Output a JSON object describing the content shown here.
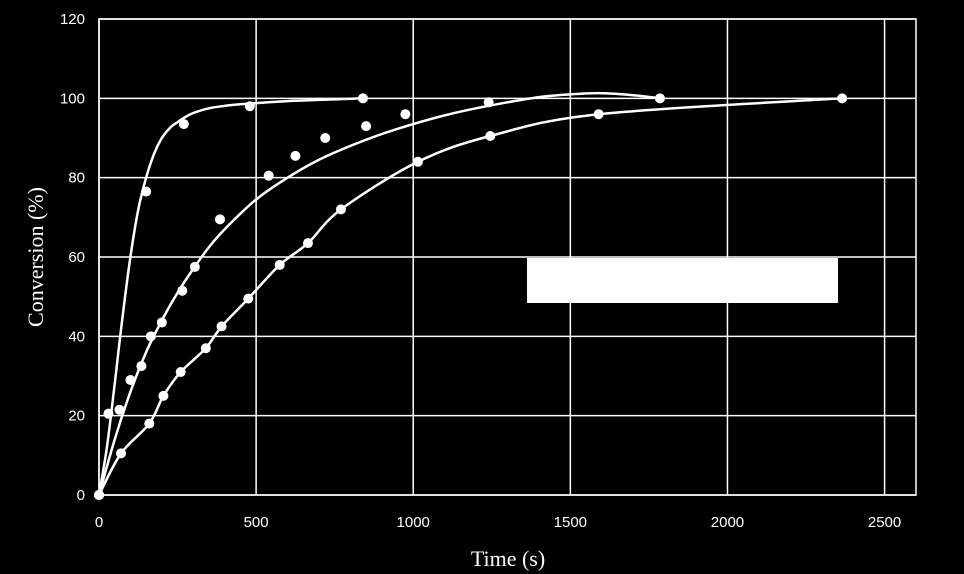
{
  "chart_data": {
    "type": "scatter",
    "title": "",
    "xlabel": "Time (s)",
    "ylabel": "Conversion (%)",
    "xlim": [
      0,
      2600
    ],
    "ylim": [
      0,
      120
    ],
    "xticks": [
      0,
      500,
      1000,
      1500,
      2000,
      2500
    ],
    "yticks": [
      0,
      20,
      40,
      60,
      80,
      100,
      120
    ],
    "grid": true,
    "legend": "hidden-by-white-box",
    "colors": {
      "background": "#000000",
      "foreground": "#ffffff"
    },
    "series": [
      {
        "x": [
          0,
          30,
          150,
          270,
          480,
          840
        ],
        "y": [
          0,
          20.5,
          76.5,
          93.5,
          98,
          100
        ],
        "fit_x": [
          0,
          25,
          50,
          75,
          100,
          125,
          150,
          175,
          200,
          225,
          250,
          275,
          300,
          350,
          400,
          450,
          500,
          600,
          700,
          840
        ],
        "fit_y": [
          0,
          12,
          28,
          45,
          60,
          72,
          80,
          86,
          90,
          92.5,
          94,
          95.3,
          96.3,
          97.5,
          98.1,
          98.5,
          98.8,
          99.3,
          99.6,
          100
        ]
      },
      {
        "x": [
          0,
          65,
          100,
          135,
          165,
          200,
          265,
          305,
          385,
          540,
          625,
          720,
          850,
          975,
          1240,
          1785
        ],
        "y": [
          0,
          21.5,
          29,
          32.5,
          40,
          43.5,
          51.5,
          57.5,
          69.5,
          80.5,
          85.5,
          90,
          93,
          96,
          99,
          100
        ],
        "fit_x": [
          0,
          50,
          100,
          150,
          200,
          250,
          300,
          350,
          400,
          500,
          600,
          700,
          800,
          900,
          1000,
          1100,
          1200,
          1300,
          1400,
          1500,
          1600,
          1700,
          1785
        ],
        "fit_y": [
          0,
          14,
          26,
          36,
          44,
          51,
          57,
          62.5,
          67,
          74.5,
          80,
          84.5,
          88,
          91,
          93.5,
          95.7,
          97.5,
          99,
          100.3,
          101,
          101.3,
          100.8,
          100
        ]
      },
      {
        "x": [
          0,
          70,
          160,
          205,
          260,
          340,
          390,
          475,
          575,
          665,
          770,
          1015,
          1245,
          1590,
          2365
        ],
        "y": [
          0,
          10.5,
          18,
          25,
          31,
          37,
          42.5,
          49.5,
          58,
          63.5,
          72,
          84,
          90.5,
          96,
          100
        ]
      }
    ]
  }
}
